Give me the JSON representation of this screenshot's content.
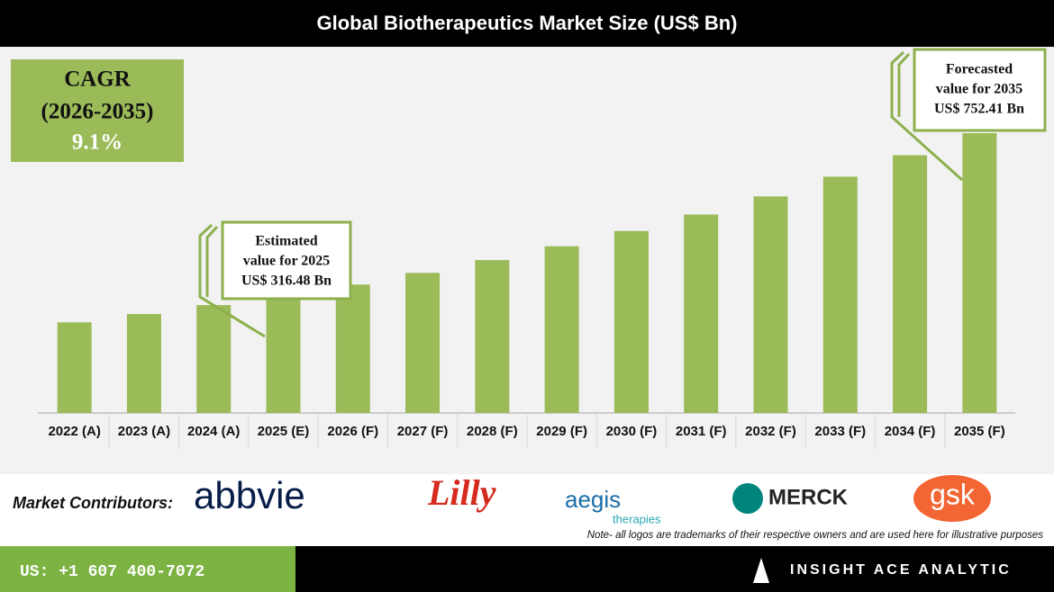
{
  "chart_data": {
    "type": "bar",
    "title": "Global Biotherapeutics Market Size (US$ Bn)",
    "categories": [
      "2022 (A)",
      "2023 (A)",
      "2024 (A)",
      "2025 (E)",
      "2026 (F)",
      "2027 (F)",
      "2028 (F)",
      "2029 (F)",
      "2030 (F)",
      "2031 (F)",
      "2032 (F)",
      "2033 (F)",
      "2034 (F)",
      "2035 (F)"
    ],
    "values": [
      243.7,
      265.9,
      290.1,
      316.48,
      345.3,
      376.7,
      411.0,
      448.4,
      489.2,
      533.7,
      582.3,
      635.3,
      693.1,
      752.41
    ],
    "color": "#9bbb59",
    "cagr": {
      "label": "CAGR",
      "period": "(2026-2035)",
      "value": "9.1%"
    },
    "annotations": [
      {
        "lines": [
          "Estimated",
          "value for 2025",
          "US$ 316.48 Bn"
        ]
      },
      {
        "lines": [
          "Forecasted",
          "value for 2035",
          "US$ 752.41 Bn"
        ]
      }
    ]
  },
  "contributors": {
    "label": "Market Contributors:",
    "logos": [
      "abbvie",
      "Lilly",
      "aegis",
      "therapies",
      "MERCK",
      "gsk"
    ],
    "note": "Note- all logos are trademarks of their respective owners and are used here for illustrative purposes"
  },
  "footer": {
    "phone": "US: +1 607 400-7072",
    "brand": "INSIGHT ACE ANALYTIC"
  }
}
